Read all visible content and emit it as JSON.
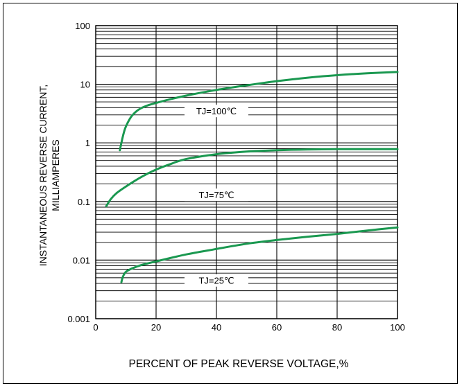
{
  "chart_data": {
    "type": "line",
    "title": "",
    "xlabel": "PERCENT OF PEAK REVERSE VOLTAGE,%",
    "ylabel": "INSTANTANEOUS REVERSE CURRENT, MILLIAMPERES",
    "ylabel_lines": [
      "INSTANTANEOUS REVERSE CURRENT,",
      "MILLIAMPERES"
    ],
    "xlim": [
      0,
      100
    ],
    "ylim": [
      0.001,
      100
    ],
    "yscale": "log",
    "grid": true,
    "x_ticks": [
      "0",
      "20",
      "40",
      "60",
      "80",
      "100"
    ],
    "y_ticks": [
      "0.001",
      "0.01",
      "0.1",
      "1",
      "10",
      "100"
    ],
    "line_color": "#1a9850",
    "series": [
      {
        "name": "TJ=100℃",
        "label_x": 40,
        "label_y": 3.5,
        "x": [
          8,
          9,
          10,
          12,
          15,
          20,
          30,
          40,
          50,
          60,
          70,
          80,
          90,
          100
        ],
        "y": [
          0.75,
          1.3,
          1.9,
          2.9,
          3.9,
          4.8,
          6.4,
          8.0,
          9.6,
          11.3,
          12.9,
          14.3,
          15.4,
          16.2
        ]
      },
      {
        "name": "TJ=75℃",
        "label_x": 40,
        "label_y": 0.13,
        "x": [
          3.5,
          5,
          7,
          10,
          15,
          20,
          25,
          30,
          40,
          50,
          60,
          70,
          80,
          90,
          100
        ],
        "y": [
          0.083,
          0.11,
          0.14,
          0.18,
          0.26,
          0.35,
          0.44,
          0.53,
          0.64,
          0.71,
          0.75,
          0.77,
          0.78,
          0.78,
          0.78
        ]
      },
      {
        "name": "TJ=25℃",
        "label_x": 40,
        "label_y": 0.0045,
        "x": [
          8.5,
          9,
          10,
          12,
          15,
          20,
          30,
          40,
          50,
          60,
          70,
          80,
          90,
          100
        ],
        "y": [
          0.0042,
          0.0052,
          0.0063,
          0.0072,
          0.0082,
          0.0095,
          0.0125,
          0.0155,
          0.019,
          0.022,
          0.025,
          0.028,
          0.032,
          0.036
        ]
      }
    ]
  }
}
